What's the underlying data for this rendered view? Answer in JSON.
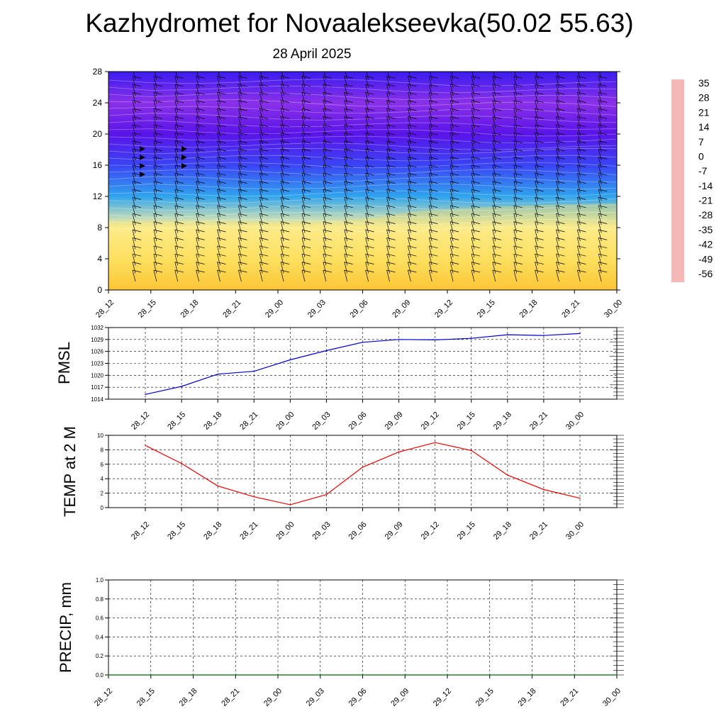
{
  "header": {
    "title": "Kazhydromet for Novaalekseevka(50.02 55.63)",
    "date": "28 April 2025"
  },
  "chart_data": [
    {
      "type": "heatmap",
      "id": "cross-section",
      "title": "",
      "xlabel": "",
      "ylabel": "",
      "x_ticks": [
        "28_12",
        "28_15",
        "28_18",
        "28_21",
        "29_00",
        "29_03",
        "29_06",
        "29_09",
        "29_12",
        "29_15",
        "29_18",
        "29_21",
        "30_00"
      ],
      "y_ticks": [
        0,
        4,
        8,
        12,
        16,
        20,
        24,
        28
      ],
      "ylim": [
        0,
        28
      ],
      "colorbar": {
        "labels": [
          "35",
          "28",
          "21",
          "14",
          "7",
          "0",
          "-7",
          "-14",
          "-21",
          "-28",
          "-35",
          "-42",
          "-49",
          "-56"
        ],
        "colors": [
          "#f4b8b8",
          "#e03030",
          "#e83818",
          "#f26010",
          "#f88a10",
          "#fcb820",
          "#fde060",
          "#fdf2a0",
          "#c4e2f2",
          "#5ec8f0",
          "#30a4ee",
          "#2a78ee",
          "#3a44f4",
          "#3a1cf0",
          "#5a14e8",
          "#8a30e8"
        ]
      },
      "temperature_by_level": [
        {
          "level": 0,
          "value": 6
        },
        {
          "level": 4,
          "value": 2
        },
        {
          "level": 8,
          "value": -7
        },
        {
          "level": 12,
          "value": -28
        },
        {
          "level": 16,
          "value": -40
        },
        {
          "level": 20,
          "value": -54
        },
        {
          "level": 24,
          "value": -60
        },
        {
          "level": 28,
          "value": -52
        }
      ]
    },
    {
      "type": "line",
      "id": "pmsl",
      "ylabel": "PMSL",
      "categories": [
        "28_12",
        "28_15",
        "28_18",
        "28_21",
        "29_00",
        "29_03",
        "29_06",
        "29_09",
        "29_12",
        "29_15",
        "29_18",
        "29_21",
        "30_00"
      ],
      "y_ticks": [
        1014,
        1017,
        1020,
        1023,
        1026,
        1029,
        1032
      ],
      "ylim": [
        1014,
        1032
      ],
      "color": "#0000cc",
      "values": [
        1015.2,
        1017.2,
        1020.3,
        1021.0,
        1023.9,
        1026.2,
        1028.3,
        1029.0,
        1028.9,
        1029.3,
        1030.2,
        1030.0,
        1030.5
      ]
    },
    {
      "type": "line",
      "id": "temp2m",
      "ylabel": "TEMP at 2 M",
      "categories": [
        "28_12",
        "28_15",
        "28_18",
        "28_21",
        "29_00",
        "29_03",
        "29_06",
        "29_09",
        "29_12",
        "29_15",
        "29_18",
        "29_21",
        "30_00"
      ],
      "y_ticks": [
        0,
        2,
        4,
        6,
        8,
        10
      ],
      "ylim": [
        0,
        10
      ],
      "color": "#ee0000",
      "values": [
        8.6,
        6.1,
        3.0,
        1.5,
        0.4,
        1.8,
        5.6,
        7.7,
        9.0,
        7.9,
        4.5,
        2.5,
        1.3
      ]
    },
    {
      "type": "line",
      "id": "precip",
      "ylabel": "PRECIP, mm",
      "categories": [
        "28_12",
        "28_15",
        "28_18",
        "28_21",
        "29_00",
        "29_03",
        "29_06",
        "29_09",
        "29_12",
        "29_15",
        "29_18",
        "29_21",
        "30_00"
      ],
      "y_ticks": [
        "0.0",
        "0.2",
        "0.4",
        "0.6",
        "0.8",
        "1.0"
      ],
      "ylim": [
        0,
        1
      ],
      "color": "#006600",
      "values": [
        0,
        0,
        0,
        0,
        0,
        0,
        0,
        0,
        0,
        0,
        0,
        0,
        0
      ]
    }
  ]
}
